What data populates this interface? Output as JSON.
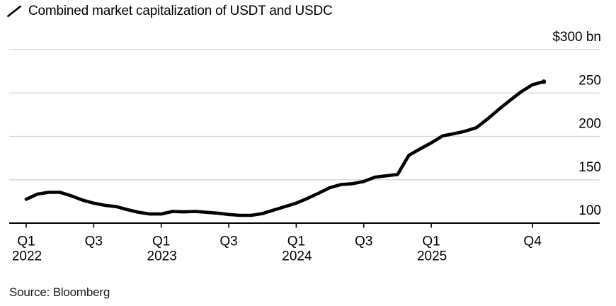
{
  "header": {
    "title": "Combined market capitalization of USDT and USDC",
    "legend_icon": "line-slash-icon"
  },
  "footer": {
    "source": "Source: Bloomberg"
  },
  "colors": {
    "background": "#ffffff",
    "line": "#000000",
    "grid": "#d4d4d4",
    "axis": "#000000",
    "text": "#000000"
  },
  "chart_data": {
    "type": "line",
    "title": "Combined market capitalization of USDT and USDC",
    "unit": "$ bn",
    "grid": "horizontal",
    "legend_position": "top-left",
    "end_dot": true,
    "ylim": [
      100,
      300
    ],
    "x": [
      "2022-01",
      "2022-02",
      "2022-03",
      "2022-04",
      "2022-05",
      "2022-06",
      "2022-07",
      "2022-08",
      "2022-09",
      "2022-10",
      "2022-11",
      "2022-12",
      "2023-01",
      "2023-02",
      "2023-03",
      "2023-04",
      "2023-05",
      "2023-06",
      "2023-07",
      "2023-08",
      "2023-09",
      "2023-10",
      "2023-11",
      "2023-12",
      "2024-01",
      "2024-02",
      "2024-03",
      "2024-04",
      "2024-05",
      "2024-06",
      "2024-07",
      "2024-08",
      "2024-09",
      "2024-10",
      "2024-11",
      "2024-12",
      "2025-01",
      "2025-02",
      "2025-03",
      "2025-04",
      "2025-05",
      "2025-06",
      "2025-07",
      "2025-08",
      "2025-09",
      "2025-10",
      "2025-11"
    ],
    "values": [
      127.5,
      133.5,
      135.5,
      135.5,
      131.5,
      126.5,
      123,
      120.5,
      119,
      115.5,
      112.5,
      110.5,
      110.5,
      113.5,
      113,
      113.5,
      112.5,
      111.5,
      110,
      109,
      109,
      111,
      115,
      119,
      123,
      128.5,
      134.5,
      141,
      144.5,
      145.5,
      148,
      153,
      154.5,
      156,
      178,
      185.5,
      192.5,
      200.5,
      203,
      206,
      210,
      220,
      231,
      241.5,
      251.5,
      259.5,
      263
    ],
    "y_ticks": [
      {
        "value": 300,
        "label": "$300 bn"
      },
      {
        "value": 250,
        "label": "250"
      },
      {
        "value": 200,
        "label": "200"
      },
      {
        "value": 150,
        "label": "150"
      },
      {
        "value": 100,
        "label": "100"
      }
    ],
    "x_ticks": [
      {
        "month_index": 0,
        "label": "Q1",
        "year": "2022"
      },
      {
        "month_index": 6,
        "label": "Q3"
      },
      {
        "month_index": 12,
        "label": "Q1",
        "year": "2023"
      },
      {
        "month_index": 18,
        "label": "Q3"
      },
      {
        "month_index": 24,
        "label": "Q1",
        "year": "2024"
      },
      {
        "month_index": 30,
        "label": "Q3"
      },
      {
        "month_index": 36,
        "label": "Q1",
        "year": "2025"
      },
      {
        "month_index": 45,
        "label": "Q4"
      }
    ]
  }
}
